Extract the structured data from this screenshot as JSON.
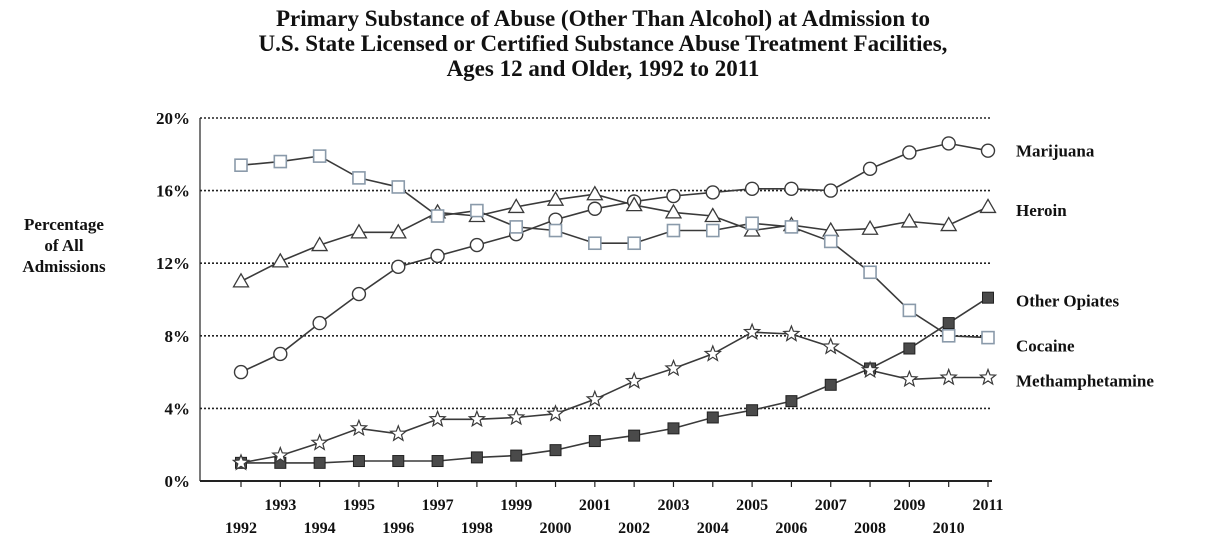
{
  "chart_data": {
    "type": "line",
    "title": [
      "Primary Substance of Abuse (Other Than Alcohol) at Admission to",
      "U.S. State Licensed or Certified Substance Abuse Treatment Facilities,",
      "Ages 12 and Older, 1992 to 2011"
    ],
    "ylabel": [
      "Percentage",
      "of All",
      "Admissions"
    ],
    "xlabel": "",
    "x": [
      1992,
      1993,
      1994,
      1995,
      1996,
      1997,
      1998,
      1999,
      2000,
      2001,
      2002,
      2003,
      2004,
      2005,
      2006,
      2007,
      2008,
      2009,
      2010,
      2011
    ],
    "x_tick_labels": [
      "1992",
      "1993",
      "1994",
      "1995",
      "1996",
      "1997",
      "1998",
      "1999",
      "2000",
      "2001",
      "2002",
      "2003",
      "2004",
      "2005",
      "2006",
      "2007",
      "2008",
      "2009",
      "2010",
      "2011"
    ],
    "ylim": [
      0,
      20
    ],
    "y_ticks": [
      0,
      4,
      8,
      12,
      16,
      20
    ],
    "y_tick_labels": [
      "0%",
      "4%",
      "8%",
      "12%",
      "16%",
      "20%"
    ],
    "grid": "horizontal dotted",
    "legend": "series labels at right end of lines",
    "series": [
      {
        "name": "Marijuana",
        "marker": "circle-open",
        "values": [
          6.0,
          7.0,
          8.7,
          10.3,
          11.8,
          12.4,
          13.0,
          13.6,
          14.4,
          15.0,
          15.4,
          15.7,
          15.9,
          16.1,
          16.1,
          16.0,
          17.2,
          18.1,
          18.6,
          18.2
        ]
      },
      {
        "name": "Heroin",
        "marker": "triangle-open",
        "values": [
          11.0,
          12.1,
          13.0,
          13.7,
          13.7,
          14.8,
          14.6,
          15.1,
          15.5,
          15.8,
          15.2,
          14.8,
          14.6,
          13.8,
          14.1,
          13.8,
          13.9,
          14.3,
          14.1,
          15.1
        ]
      },
      {
        "name": "Other Opiates",
        "marker": "square-filled",
        "values": [
          1.0,
          1.0,
          1.0,
          1.1,
          1.1,
          1.1,
          1.3,
          1.4,
          1.7,
          2.2,
          2.5,
          2.9,
          3.5,
          3.9,
          4.4,
          5.3,
          6.2,
          7.3,
          8.7,
          10.1
        ]
      },
      {
        "name": "Cocaine",
        "marker": "square-open",
        "values": [
          17.4,
          17.6,
          17.9,
          16.7,
          16.2,
          14.6,
          14.9,
          14.0,
          13.8,
          13.1,
          13.1,
          13.8,
          13.8,
          14.2,
          14.0,
          13.2,
          11.5,
          9.4,
          8.0,
          7.9
        ]
      },
      {
        "name": "Methamphetamine",
        "marker": "star-open",
        "values": [
          1.0,
          1.4,
          2.1,
          2.9,
          2.6,
          3.4,
          3.4,
          3.5,
          3.7,
          4.5,
          5.5,
          6.2,
          7.0,
          8.2,
          8.1,
          7.4,
          6.1,
          5.6,
          5.7,
          5.7
        ]
      }
    ],
    "colors": {
      "lines": "#3a3a3a",
      "marker_open_fill": "#ffffff",
      "marker_filled": "#4a4a4a",
      "cocaine_marker": "#8a9aaa",
      "grid": "#222222"
    }
  }
}
